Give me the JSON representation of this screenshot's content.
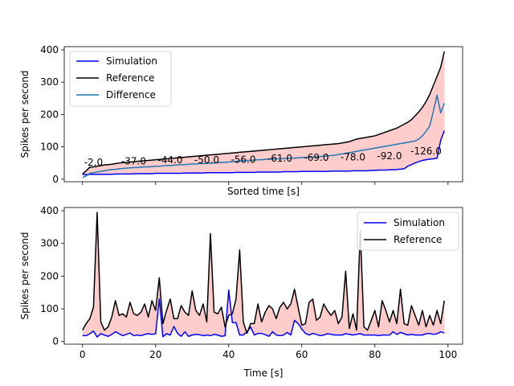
{
  "chart_data": [
    {
      "type": "line",
      "xlabel": "Sorted time [s]",
      "ylabel": "Spikes per second",
      "xlim": [
        -5,
        104
      ],
      "ylim": [
        -8,
        410
      ],
      "yticks": [
        0,
        100,
        200,
        300,
        400
      ],
      "xticks": [
        0,
        20,
        40,
        60,
        80,
        100
      ],
      "show_xtick_labels": false,
      "grid": false,
      "legend_position": "upper-left",
      "fill_between": {
        "series": [
          "Simulation",
          "Reference"
        ],
        "color": "#ffcccc"
      },
      "annotations": [
        {
          "x": 3,
          "y": 52,
          "text": "-2.0"
        },
        {
          "x": 14,
          "y": 56,
          "text": "-37.0"
        },
        {
          "x": 24,
          "y": 59,
          "text": "-44.0"
        },
        {
          "x": 34,
          "y": 59,
          "text": "-50.0"
        },
        {
          "x": 44,
          "y": 61,
          "text": "-56.0"
        },
        {
          "x": 54,
          "y": 64,
          "text": "-61.0"
        },
        {
          "x": 64,
          "y": 67,
          "text": "-69.0"
        },
        {
          "x": 74,
          "y": 68,
          "text": "-78.0"
        },
        {
          "x": 84,
          "y": 71,
          "text": "-92.0"
        },
        {
          "x": 94,
          "y": 87,
          "text": "-126.0"
        }
      ],
      "series": [
        {
          "name": "Simulation",
          "color": "#0000ff",
          "y": [
            14,
            14,
            15,
            15,
            15,
            15,
            15,
            15,
            15,
            16,
            16,
            16,
            16,
            16,
            17,
            17,
            17,
            17,
            17,
            17,
            18,
            18,
            18,
            18,
            18,
            18,
            18,
            18,
            19,
            19,
            19,
            19,
            19,
            19,
            20,
            20,
            20,
            20,
            20,
            20,
            20,
            20,
            21,
            21,
            21,
            21,
            21,
            21,
            22,
            22,
            22,
            22,
            22,
            22,
            22,
            23,
            23,
            23,
            23,
            23,
            24,
            24,
            24,
            24,
            24,
            24,
            24,
            24,
            25,
            25,
            25,
            25,
            25,
            25,
            26,
            26,
            26,
            26,
            26,
            27,
            27,
            28,
            28,
            28,
            29,
            29,
            30,
            31,
            32,
            40,
            45,
            50,
            54,
            58,
            60,
            62,
            63,
            65,
            120,
            150
          ]
        },
        {
          "name": "Reference",
          "color": "#000000",
          "y": [
            16,
            26,
            37,
            38,
            40,
            42,
            44,
            45,
            46,
            48,
            50,
            51,
            52,
            53,
            54,
            55,
            56,
            57,
            58,
            59,
            60,
            61,
            62,
            63,
            64,
            65,
            66,
            67,
            68,
            69,
            70,
            71,
            72,
            73,
            74,
            75,
            76,
            77,
            78,
            79,
            80,
            81,
            82,
            83,
            84,
            85,
            86,
            87,
            88,
            89,
            90,
            91,
            92,
            93,
            94,
            95,
            96,
            97,
            98,
            99,
            100,
            101,
            102,
            103,
            104,
            105,
            106,
            107,
            108,
            109,
            110,
            112,
            114,
            116,
            120,
            124,
            126,
            128,
            130,
            132,
            134,
            138,
            142,
            146,
            150,
            154,
            158,
            164,
            170,
            176,
            184,
            196,
            208,
            222,
            240,
            262,
            290,
            318,
            346,
            395
          ]
        },
        {
          "name": "Difference",
          "color": "#1f77b4",
          "y": [
            5,
            10,
            18,
            20,
            22,
            24,
            26,
            28,
            30,
            30,
            32,
            33,
            34,
            35,
            36,
            36,
            37,
            38,
            38,
            39,
            40,
            40,
            41,
            42,
            42,
            43,
            44,
            45,
            45,
            46,
            47,
            47,
            48,
            48,
            49,
            50,
            50,
            51,
            52,
            52,
            53,
            54,
            55,
            56,
            57,
            58,
            58,
            59,
            60,
            60,
            61,
            62,
            62,
            63,
            63,
            64,
            64,
            65,
            65,
            66,
            67,
            67,
            68,
            68,
            69,
            70,
            71,
            72,
            73,
            74,
            76,
            78,
            80,
            82,
            84,
            86,
            88,
            90,
            92,
            94,
            96,
            98,
            100,
            102,
            104,
            106,
            108,
            110,
            112,
            114,
            116,
            118,
            124,
            134,
            148,
            164,
            210,
            260,
            205,
            235
          ]
        }
      ]
    },
    {
      "type": "line",
      "xlabel": "Time [s]",
      "ylabel": "Spikes per second",
      "xlim": [
        -5,
        104
      ],
      "ylim": [
        -8,
        410
      ],
      "xticks": [
        0,
        20,
        40,
        60,
        80,
        100
      ],
      "yticks": [
        0,
        100,
        200,
        300,
        400
      ],
      "grid": false,
      "legend_position": "upper-right",
      "fill_between": {
        "series": [
          "Simulation",
          "Reference"
        ],
        "color": "#ffcccc"
      },
      "series": [
        {
          "name": "Simulation",
          "color": "#0000ff",
          "y": [
            18,
            18,
            24,
            32,
            14,
            24,
            20,
            16,
            22,
            30,
            24,
            18,
            22,
            26,
            18,
            20,
            18,
            22,
            24,
            22,
            24,
            130,
            15,
            24,
            20,
            46,
            25,
            16,
            30,
            16,
            20,
            22,
            21,
            18,
            20,
            18,
            22,
            20,
            16,
            18,
            158,
            58,
            58,
            20,
            20,
            30,
            44,
            20,
            25,
            25,
            21,
            16,
            30,
            20,
            18,
            20,
            28,
            20,
            65,
            55,
            38,
            25,
            20,
            25,
            22,
            18,
            20,
            24,
            22,
            20,
            20,
            20,
            24,
            22,
            20,
            22,
            24,
            20,
            20,
            20,
            20,
            18,
            20,
            20,
            20,
            30,
            22,
            28,
            24,
            20,
            22,
            20,
            20,
            20,
            24,
            25,
            22,
            24,
            30,
            26
          ]
        },
        {
          "name": "Reference",
          "color": "#000000",
          "y": [
            35,
            55,
            70,
            105,
            395,
            60,
            35,
            45,
            75,
            125,
            80,
            85,
            75,
            120,
            85,
            80,
            90,
            115,
            75,
            125,
            95,
            195,
            55,
            95,
            130,
            70,
            70,
            110,
            90,
            80,
            155,
            95,
            80,
            115,
            60,
            330,
            90,
            85,
            105,
            45,
            80,
            85,
            130,
            280,
            60,
            25,
            55,
            55,
            115,
            60,
            90,
            110,
            100,
            70,
            105,
            120,
            100,
            115,
            160,
            105,
            50,
            55,
            120,
            130,
            65,
            75,
            115,
            95,
            80,
            95,
            55,
            75,
            215,
            40,
            85,
            35,
            340,
            45,
            35,
            65,
            95,
            45,
            125,
            95,
            60,
            95,
            55,
            160,
            55,
            50,
            110,
            80,
            50,
            95,
            45,
            80,
            50,
            95,
            55,
            125
          ]
        }
      ]
    }
  ]
}
